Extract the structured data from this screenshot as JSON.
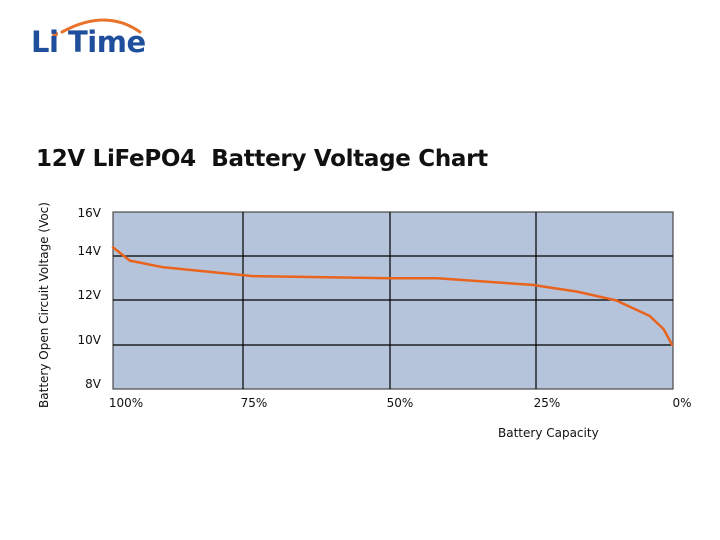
{
  "logo": {
    "text": "Li Time",
    "text_color": "#1f4e9c",
    "arc_color": "#e8732a"
  },
  "title": "12V LiFePO4  Battery Voltage Chart",
  "axes": {
    "ylabel": "Battery Open Circuit Voltage (Voc)",
    "xlabel": "Battery Capacity",
    "yticks": [
      "16V",
      "14V",
      "12V",
      "10V",
      "8V"
    ],
    "xticks": [
      "100%",
      "75%",
      "50%",
      "25%",
      "0%"
    ]
  },
  "colors": {
    "plot_bg": "#b5c4da",
    "line": "#e8641e",
    "grid": "#000000",
    "border": "#4a4a4a"
  },
  "chart_data": {
    "type": "line",
    "title": "12V LiFePO4  Battery Voltage Chart",
    "xlabel": "Battery Capacity",
    "ylabel": "Battery Open Circuit Voltage (Voc)",
    "x_tick_labels": [
      "100%",
      "75%",
      "50%",
      "25%",
      "0%"
    ],
    "y_tick_labels": [
      "16V",
      "14V",
      "12V",
      "10V",
      "8V"
    ],
    "xlim": [
      100,
      0
    ],
    "ylim": [
      8,
      16
    ],
    "grid": true,
    "legend": null,
    "series": [
      {
        "name": "Open Circuit Voltage",
        "x": [
          100,
          97,
          91,
          75,
          50,
          42,
          25,
          17,
          10,
          4,
          1.5,
          0
        ],
        "values": [
          14.4,
          13.8,
          13.5,
          13.1,
          13.0,
          13.0,
          12.7,
          12.4,
          12.0,
          11.3,
          10.7,
          10.0
        ]
      }
    ]
  }
}
